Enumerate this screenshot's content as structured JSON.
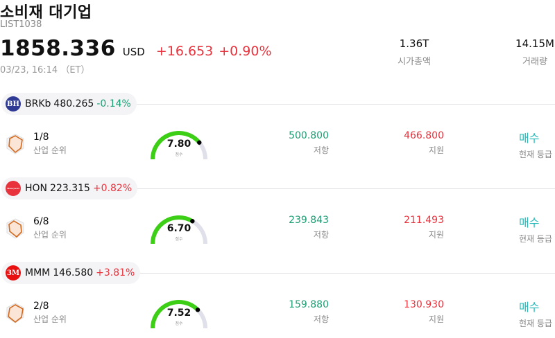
{
  "header": {
    "title": "소비재 대기업",
    "code": "LIST1038",
    "price": "1858.336",
    "currency": "USD",
    "change": "+16.653",
    "change_pct": "+0.90%",
    "timestamp": "03/23, 16:14 （ET）"
  },
  "stats": {
    "market_cap_value": "1.36T",
    "market_cap_label": "시가총액",
    "volume_value": "14.15M",
    "volume_label": "거래량"
  },
  "labels": {
    "rank": "산업 순위",
    "score": "점수",
    "resistance": "저항",
    "support": "지원",
    "current_rating": "현재 등급"
  },
  "colors": {
    "up": "#e8323c",
    "down": "#1a9e72",
    "gauge": "#3ccf16",
    "gauge_track": "#e0e0ea",
    "rating": "#23b8b8"
  },
  "stocks": [
    {
      "symbol": "BRKb",
      "price": "480.265",
      "change_pct": "-0.14%",
      "direction": "down",
      "logo_text": "BH",
      "logo_color": "#2e3a94",
      "rank": "1/8",
      "score": "7.80",
      "score_fraction": 0.78,
      "resistance": "500.800",
      "support": "466.800",
      "rating": "매수"
    },
    {
      "symbol": "HON",
      "price": "223.315",
      "change_pct": "+0.82%",
      "direction": "up",
      "logo_text": "Honeywell",
      "logo_color": "#e8323c",
      "rank": "6/8",
      "score": "6.70",
      "score_fraction": 0.67,
      "resistance": "239.843",
      "support": "211.493",
      "rating": "매수"
    },
    {
      "symbol": "MMM",
      "price": "146.580",
      "change_pct": "+3.81%",
      "direction": "up",
      "logo_text": "3M",
      "logo_color": "#e81010",
      "rank": "2/8",
      "score": "7.52",
      "score_fraction": 0.752,
      "resistance": "159.880",
      "support": "130.930",
      "rating": "매수"
    }
  ]
}
